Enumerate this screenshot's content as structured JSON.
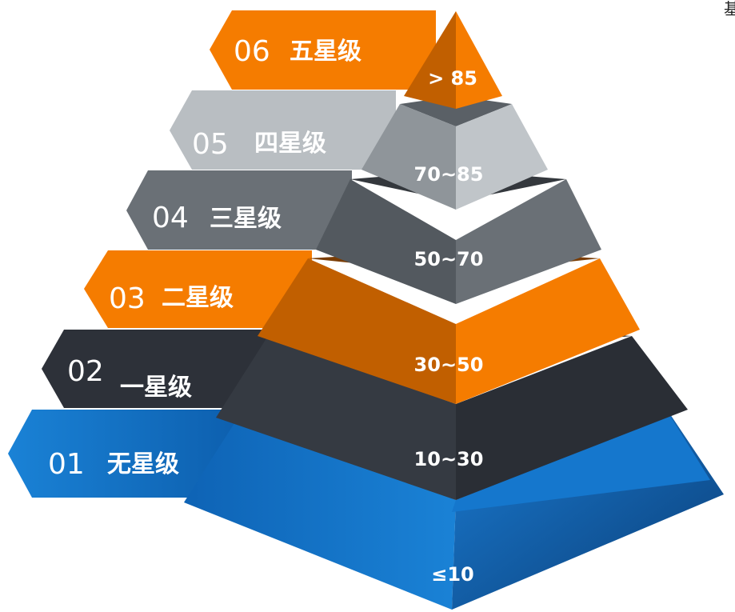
{
  "corner_text": "基",
  "colors": {
    "blue": "#1877c9",
    "dark": "#2d3139",
    "orange": "#f57c00",
    "gray": "#6a7076",
    "light_gray": "#b9bec2",
    "text_white": "#ffffff"
  },
  "tiers": [
    {
      "number": "06",
      "name": "五星级",
      "range": "> 85"
    },
    {
      "number": "05",
      "name": "四星级",
      "range": "70~85"
    },
    {
      "number": "04",
      "name": "三星级",
      "range": "50~70"
    },
    {
      "number": "03",
      "name": "二星级",
      "range": "30~50"
    },
    {
      "number": "02",
      "name": "一星级",
      "range": "10~30"
    },
    {
      "number": "01",
      "name": "无星级",
      "range": "≤10"
    }
  ]
}
